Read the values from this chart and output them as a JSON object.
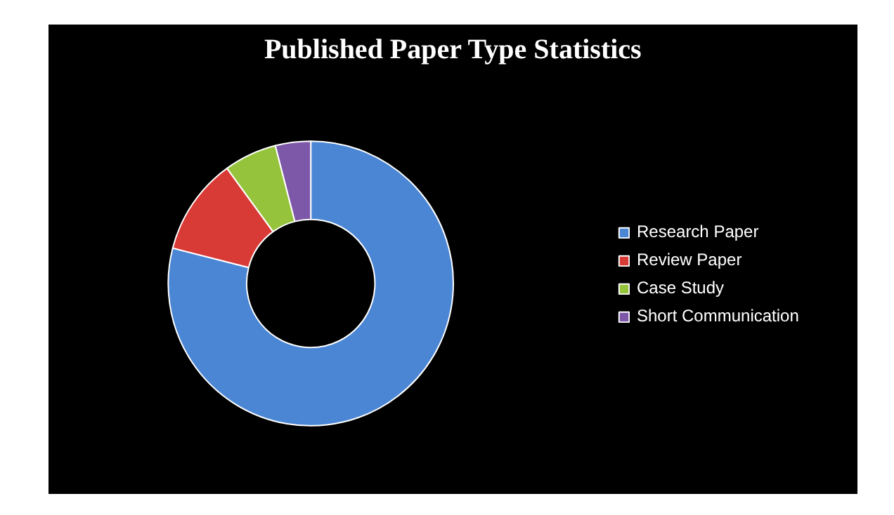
{
  "chart_data": {
    "type": "donut",
    "title": "Published Paper Type Statistics",
    "categories": [
      "Research Paper",
      "Review Paper",
      "Case Study",
      "Short Communication"
    ],
    "values": [
      79,
      11,
      6,
      4
    ],
    "colors": [
      "#4a86d4",
      "#d83a36",
      "#95c43c",
      "#7e58a8"
    ],
    "legend": "right"
  }
}
